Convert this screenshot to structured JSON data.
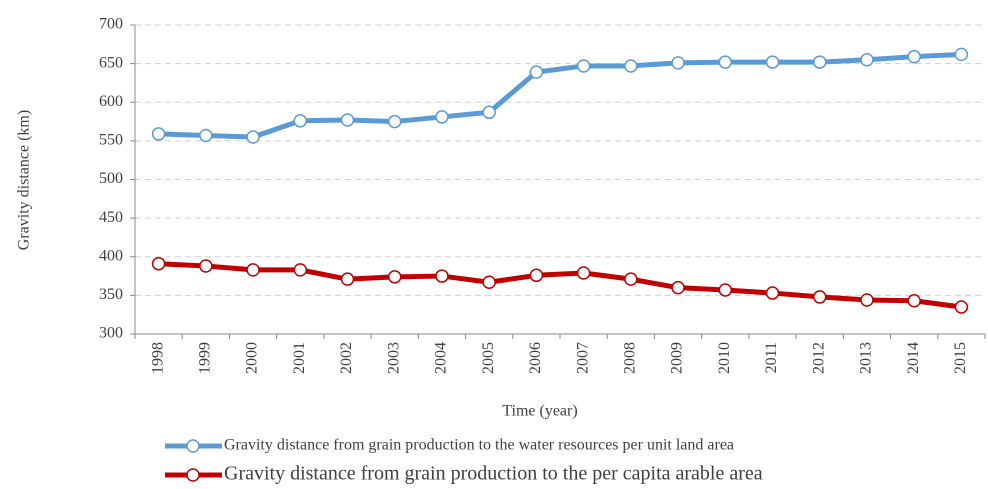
{
  "chart_data": {
    "type": "line",
    "x_label": "Time (year)",
    "y_label": "Gravity distance (km)",
    "categories": [
      "1998",
      "1999",
      "2000",
      "2001",
      "2002",
      "2003",
      "2004",
      "2005",
      "2006",
      "2007",
      "2008",
      "2009",
      "2010",
      "2011",
      "2012",
      "2013",
      "2014",
      "2015"
    ],
    "series": [
      {
        "name": "Gravity distance from grain production to the water resources per unit land area",
        "color": "#5b9bd5",
        "values": [
          559,
          557,
          555,
          576,
          577,
          575,
          581,
          587,
          639,
          647,
          647,
          651,
          652,
          652,
          652,
          655,
          659,
          662
        ]
      },
      {
        "name": "Gravity distance from grain production to the per capita arable area",
        "color": "#c00000",
        "values": [
          391,
          388,
          383,
          383,
          371,
          374,
          375,
          367,
          376,
          379,
          371,
          360,
          357,
          353,
          348,
          344,
          343,
          335
        ]
      }
    ],
    "ylim": [
      300,
      700
    ],
    "yticks": [
      300,
      350,
      400,
      450,
      500,
      550,
      600,
      650,
      700
    ],
    "grid": true
  }
}
